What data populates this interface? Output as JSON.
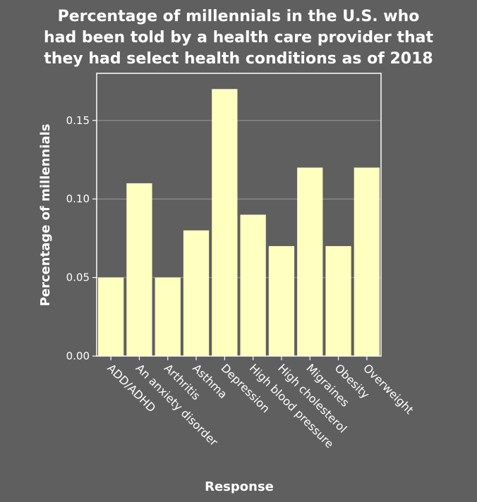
{
  "chart_data": {
    "type": "bar",
    "title_lines": [
      "Percentage of millennials in the U.S. who",
      "had been told by a health care provider that",
      "they had select health conditions as of 2018"
    ],
    "xlabel": "Response",
    "ylabel": "Percentage of millennials",
    "categories": [
      "ADD/ADHD",
      "An anxiety disorder",
      "Arthritis",
      "Asthma",
      "Depression",
      "High blood pressure",
      "High cholesterol",
      "Migraines",
      "Obesity",
      "Overweight"
    ],
    "values": [
      0.05,
      0.11,
      0.05,
      0.08,
      0.17,
      0.09,
      0.07,
      0.12,
      0.07,
      0.12
    ],
    "ylim": [
      0,
      0.18
    ],
    "yticks": [
      0.0,
      0.05,
      0.1,
      0.15
    ],
    "ytick_labels": [
      "0.00",
      "0.05",
      "0.10",
      "0.15"
    ],
    "grid": true,
    "colors": {
      "background": "#5f5f5f",
      "bar": "#ffffc0",
      "text": "#ffffff",
      "grid": "#9a9a9a",
      "axis": "#ffffff"
    }
  }
}
